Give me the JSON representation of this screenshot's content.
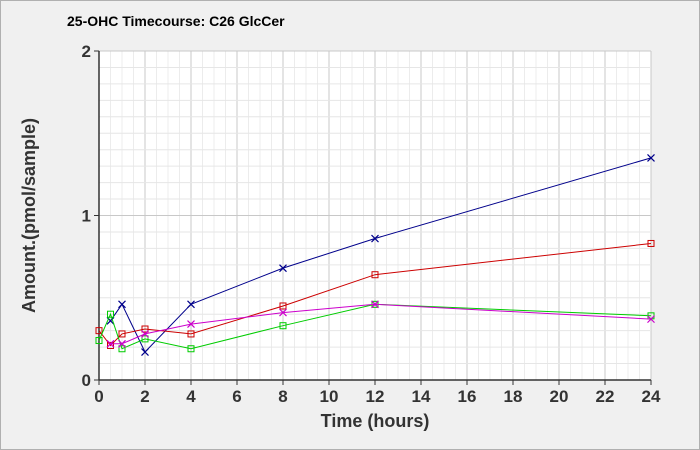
{
  "chart_data": {
    "type": "line",
    "title": "25-OHC Timecourse: C26 GlcCer",
    "xlabel": "Time (hours)",
    "ylabel": "Amount.(pmol/sample)",
    "xlim": [
      0,
      24
    ],
    "ylim": [
      0,
      2
    ],
    "xticks": [
      "0",
      "2",
      "4",
      "6",
      "8",
      "10",
      "12",
      "14",
      "16",
      "18",
      "20",
      "22",
      "24"
    ],
    "yticks": [
      "0",
      "1",
      "2"
    ],
    "grid": true,
    "legend": "none",
    "series": [
      {
        "color": "#00008b",
        "marker": "x",
        "x": [
          0.5,
          1,
          2,
          4,
          8,
          12,
          24
        ],
        "y": [
          0.36,
          0.46,
          0.17,
          0.46,
          0.68,
          0.86,
          1.35
        ]
      },
      {
        "color": "#cc0000",
        "marker": "square",
        "x": [
          0,
          0.5,
          1,
          2,
          4,
          8,
          12,
          24
        ],
        "y": [
          0.3,
          0.21,
          0.28,
          0.31,
          0.28,
          0.45,
          0.64,
          0.83
        ]
      },
      {
        "color": "#00cc00",
        "marker": "square",
        "x": [
          0,
          0.5,
          1,
          2,
          4,
          8,
          12,
          24
        ],
        "y": [
          0.24,
          0.4,
          0.19,
          0.25,
          0.19,
          0.33,
          0.46,
          0.39
        ]
      },
      {
        "color": "#cc00cc",
        "marker": "x",
        "x": [
          0.5,
          1,
          2,
          4,
          8,
          12,
          24
        ],
        "y": [
          0.22,
          0.22,
          0.28,
          0.34,
          0.41,
          0.46,
          0.37
        ]
      }
    ]
  }
}
